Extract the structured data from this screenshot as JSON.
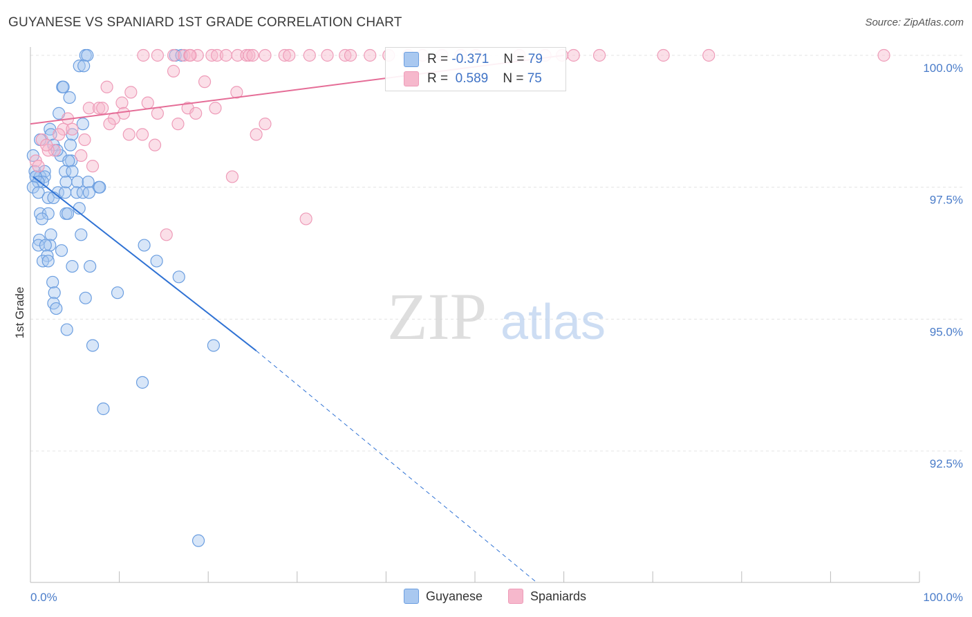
{
  "title": "GUYANESE VS SPANIARD 1ST GRADE CORRELATION CHART",
  "source": "Source: ZipAtlas.com",
  "watermark": {
    "zip": "ZIP",
    "atlas": "atlas"
  },
  "colors": {
    "blue_fill": "#a9c8f0",
    "blue_stroke": "#6b9ee0",
    "blue_line": "#2f72d4",
    "pink_fill": "#f6b8cc",
    "pink_stroke": "#ee9bb8",
    "pink_line": "#e56d97",
    "tick_label": "#4a7cc9",
    "grid": "#e3e3e3"
  },
  "legend": {
    "rows": [
      {
        "r_label": "R =",
        "r_value": "-0.371",
        "n_label": "N =",
        "n_value": "79",
        "color": "#a9c8f0"
      },
      {
        "r_label": "R =",
        "r_value": "0.589",
        "n_label": "N =",
        "n_value": "75",
        "color": "#f6b8cc"
      }
    ]
  },
  "bottom_legend": [
    {
      "label": "Guyanese",
      "color": "#a9c8f0"
    },
    {
      "label": "Spaniards",
      "color": "#f6b8cc"
    }
  ],
  "chart_data": {
    "type": "scatter",
    "title": "GUYANESE VS SPANIARD 1ST GRADE CORRELATION CHART",
    "xlabel": "",
    "ylabel": "1st Grade",
    "xlim": [
      0,
      100
    ],
    "ylim": [
      90.0,
      100.2
    ],
    "x_tick_labels": [
      "0.0%",
      "100.0%"
    ],
    "y_ticks": [
      92.5,
      95.0,
      97.5,
      100.0
    ],
    "y_tick_labels": [
      "92.5%",
      "95.0%",
      "97.5%",
      "100.0%"
    ],
    "grid": true,
    "series": [
      {
        "name": "Guyanese",
        "r": -0.371,
        "n": 79,
        "trend": {
          "x0": 0.3,
          "y0": 97.7,
          "x1": 25.4,
          "y1": 94.4,
          "dash_to_x": 57.0,
          "dash_to_y": 90.0
        },
        "points": [
          [
            6.2,
            100.0
          ],
          [
            6.4,
            100.0
          ],
          [
            16.3,
            100.0
          ],
          [
            17.0,
            100.0
          ],
          [
            5.5,
            99.8
          ],
          [
            3.6,
            99.4
          ],
          [
            3.7,
            99.4
          ],
          [
            4.4,
            99.2
          ],
          [
            3.2,
            98.9
          ],
          [
            5.9,
            98.7
          ],
          [
            2.2,
            98.6
          ],
          [
            2.3,
            98.5
          ],
          [
            4.7,
            98.5
          ],
          [
            1.1,
            98.4
          ],
          [
            4.5,
            98.3
          ],
          [
            2.6,
            98.3
          ],
          [
            0.3,
            98.1
          ],
          [
            3.4,
            98.1
          ],
          [
            4.6,
            98.0
          ],
          [
            4.3,
            98.0
          ],
          [
            0.5,
            97.8
          ],
          [
            1.6,
            97.8
          ],
          [
            3.9,
            97.8
          ],
          [
            4.7,
            97.8
          ],
          [
            0.6,
            97.7
          ],
          [
            1.1,
            97.7
          ],
          [
            1.6,
            97.7
          ],
          [
            1.4,
            97.6
          ],
          [
            0.6,
            97.7
          ],
          [
            0.9,
            97.6
          ],
          [
            5.3,
            97.6
          ],
          [
            6.5,
            97.6
          ],
          [
            0.3,
            97.5
          ],
          [
            7.7,
            97.5
          ],
          [
            7.8,
            97.5
          ],
          [
            5.2,
            97.4
          ],
          [
            3.1,
            97.4
          ],
          [
            3.9,
            97.4
          ],
          [
            5.9,
            97.4
          ],
          [
            6.6,
            97.4
          ],
          [
            0.9,
            97.4
          ],
          [
            2.0,
            97.3
          ],
          [
            2.6,
            97.3
          ],
          [
            5.5,
            97.1
          ],
          [
            1.1,
            97.0
          ],
          [
            2.0,
            97.0
          ],
          [
            4.0,
            97.0
          ],
          [
            4.2,
            97.0
          ],
          [
            1.3,
            96.9
          ],
          [
            5.7,
            96.6
          ],
          [
            2.3,
            96.6
          ],
          [
            1.0,
            96.5
          ],
          [
            2.2,
            96.4
          ],
          [
            0.9,
            96.4
          ],
          [
            1.7,
            96.4
          ],
          [
            3.5,
            96.3
          ],
          [
            12.8,
            96.4
          ],
          [
            1.9,
            96.2
          ],
          [
            1.4,
            96.1
          ],
          [
            14.2,
            96.1
          ],
          [
            2.0,
            96.1
          ],
          [
            4.7,
            96.0
          ],
          [
            6.7,
            96.0
          ],
          [
            16.7,
            95.8
          ],
          [
            2.5,
            95.7
          ],
          [
            9.8,
            95.5
          ],
          [
            2.7,
            95.5
          ],
          [
            6.2,
            95.4
          ],
          [
            2.6,
            95.3
          ],
          [
            2.9,
            95.2
          ],
          [
            4.1,
            94.8
          ],
          [
            7.0,
            94.5
          ],
          [
            20.6,
            94.5
          ],
          [
            12.6,
            93.8
          ],
          [
            8.2,
            93.3
          ],
          [
            18.9,
            90.8
          ],
          [
            6.0,
            99.8
          ],
          [
            3.0,
            98.2
          ],
          [
            4.0,
            97.6
          ]
        ]
      },
      {
        "name": "Spaniards",
        "r": 0.589,
        "n": 75,
        "trend": {
          "x0": 0.0,
          "y0": 98.7,
          "x1": 60.0,
          "y1": 100.0
        },
        "points": [
          [
            12.7,
            100.0
          ],
          [
            14.3,
            100.0
          ],
          [
            16.1,
            100.0
          ],
          [
            17.3,
            100.0
          ],
          [
            17.9,
            100.0
          ],
          [
            18.8,
            100.0
          ],
          [
            20.4,
            100.0
          ],
          [
            21.0,
            100.0
          ],
          [
            22.0,
            100.0
          ],
          [
            23.3,
            100.0
          ],
          [
            24.3,
            100.0
          ],
          [
            24.6,
            100.0
          ],
          [
            25.0,
            100.0
          ],
          [
            26.4,
            100.0
          ],
          [
            28.6,
            100.0
          ],
          [
            29.1,
            100.0
          ],
          [
            31.4,
            100.0
          ],
          [
            33.4,
            100.0
          ],
          [
            35.4,
            100.0
          ],
          [
            36.0,
            100.0
          ],
          [
            38.2,
            100.0
          ],
          [
            40.3,
            100.0
          ],
          [
            42.5,
            100.0
          ],
          [
            44.1,
            100.0
          ],
          [
            46.3,
            100.0
          ],
          [
            48.4,
            100.0
          ],
          [
            50.1,
            100.0
          ],
          [
            55.0,
            100.0
          ],
          [
            57.9,
            100.0
          ],
          [
            59.8,
            100.0
          ],
          [
            61.1,
            100.0
          ],
          [
            71.2,
            100.0
          ],
          [
            76.3,
            100.0
          ],
          [
            96.0,
            100.0
          ],
          [
            16.1,
            99.7
          ],
          [
            8.6,
            99.4
          ],
          [
            19.6,
            99.5
          ],
          [
            11.3,
            99.3
          ],
          [
            23.2,
            99.3
          ],
          [
            10.3,
            99.1
          ],
          [
            13.2,
            99.1
          ],
          [
            6.6,
            99.0
          ],
          [
            7.7,
            99.0
          ],
          [
            8.1,
            99.0
          ],
          [
            17.7,
            99.0
          ],
          [
            20.8,
            99.0
          ],
          [
            10.5,
            98.9
          ],
          [
            14.3,
            98.9
          ],
          [
            18.6,
            98.9
          ],
          [
            4.2,
            98.8
          ],
          [
            9.4,
            98.8
          ],
          [
            8.9,
            98.7
          ],
          [
            16.6,
            98.7
          ],
          [
            26.4,
            98.7
          ],
          [
            3.7,
            98.6
          ],
          [
            11.1,
            98.5
          ],
          [
            12.6,
            98.5
          ],
          [
            25.4,
            98.5
          ],
          [
            3.2,
            98.5
          ],
          [
            6.1,
            98.4
          ],
          [
            1.3,
            98.4
          ],
          [
            14.0,
            98.3
          ],
          [
            2.7,
            98.2
          ],
          [
            2.0,
            98.2
          ],
          [
            5.7,
            98.1
          ],
          [
            0.6,
            98.0
          ],
          [
            7.0,
            97.9
          ],
          [
            22.7,
            97.7
          ],
          [
            31.0,
            96.9
          ],
          [
            15.3,
            96.6
          ],
          [
            0.9,
            97.9
          ],
          [
            1.8,
            98.3
          ],
          [
            4.7,
            98.6
          ],
          [
            18.0,
            100.0
          ],
          [
            64.0,
            100.0
          ]
        ]
      }
    ]
  }
}
